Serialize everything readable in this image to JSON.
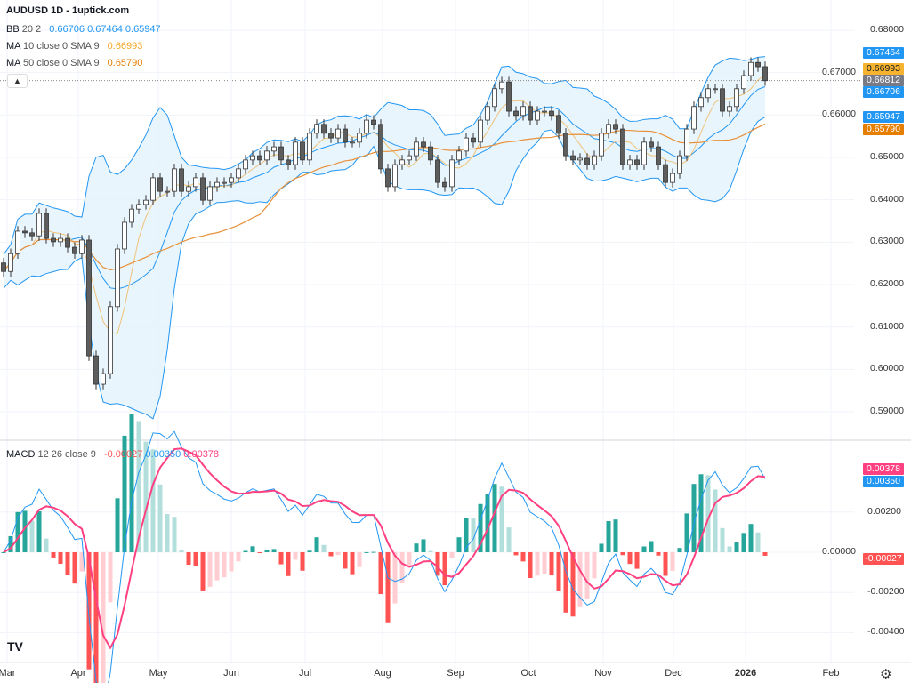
{
  "header": {
    "title": "AUDUSD 1D - 1uptick.com"
  },
  "legend": {
    "bb": {
      "label": "BB",
      "params": "20 2",
      "basis": "0.66706",
      "upper": "0.67464",
      "lower": "0.65947"
    },
    "ma10": {
      "label": "MA",
      "params": "10 close 0 SMA 9",
      "value": "0.66993"
    },
    "ma50": {
      "label": "MA",
      "params": "50 close 0 SMA 9",
      "value": "0.65790"
    },
    "macd": {
      "label": "MACD",
      "params": "12 26 close 9",
      "hist": "-0.00027",
      "macd": "0.00350",
      "signal": "0.00378"
    }
  },
  "collapse_icon": "chevron-up-icon",
  "price_tags": {
    "bb_upper": {
      "text": "0.67464",
      "color": "#2196f3"
    },
    "ma10": {
      "text": "0.66993",
      "color": "#f5a623"
    },
    "last": {
      "text": "0.66812",
      "color": "#787b86"
    },
    "bb_basis": {
      "text": "0.66706",
      "color": "#2196f3"
    },
    "bb_lower": {
      "text": "0.65947",
      "color": "#2196f3"
    },
    "ma50": {
      "text": "0.65790",
      "color": "#e67e00"
    },
    "macd_signal": {
      "text": "0.00378",
      "color": "#ff4081"
    },
    "macd_line": {
      "text": "0.00350",
      "color": "#2196f3"
    },
    "macd_hist": {
      "text": "-0.00027",
      "color": "#ff5252"
    }
  },
  "colors": {
    "bb_band": "#2196f3",
    "bb_fill": "#e3f2fd",
    "ma10": "#f0c27a",
    "ma50": "#e8913a",
    "up_body": "#ffffff",
    "down_body": "#5d5d5d",
    "wick": "#333333",
    "macd": "#2196f3",
    "signal": "#ff4081",
    "hist_up_strong": "#26a69a",
    "hist_up_weak": "#b2dfdb",
    "hist_dn_strong": "#ff5252",
    "hist_dn_weak": "#ffcdd2"
  },
  "chart_data": [
    {
      "type": "candlestick",
      "title": "AUDUSD 1D - 1uptick.com",
      "yaxis_ticks": [
        "0.68000",
        "0.67000",
        "0.66000",
        "0.65000",
        "0.64000",
        "0.63000",
        "0.62000",
        "0.61000",
        "0.60000",
        "0.59000"
      ],
      "ylim": [
        0.5875,
        0.6815
      ],
      "xaxis_ticks": [
        "Mar",
        "Apr",
        "May",
        "Jun",
        "Jul",
        "Aug",
        "Sep",
        "Oct",
        "Nov",
        "Dec",
        "2026",
        "Feb"
      ],
      "grid": true,
      "last_price": 0.66812,
      "closes": [
        0.6231,
        0.6273,
        0.6326,
        0.6322,
        0.6315,
        0.6368,
        0.6309,
        0.6301,
        0.6309,
        0.6288,
        0.6273,
        0.6305,
        0.6032,
        0.5965,
        0.599,
        0.6148,
        0.6284,
        0.6347,
        0.6378,
        0.6389,
        0.6399,
        0.6452,
        0.642,
        0.642,
        0.6473,
        0.642,
        0.6431,
        0.6452,
        0.6399,
        0.6431,
        0.6441,
        0.6441,
        0.6452,
        0.6473,
        0.6494,
        0.6504,
        0.6494,
        0.6515,
        0.6525,
        0.6494,
        0.6483,
        0.6536,
        0.6494,
        0.6557,
        0.6578,
        0.6557,
        0.6546,
        0.6567,
        0.6536,
        0.6536,
        0.6557,
        0.6588,
        0.6578,
        0.6473,
        0.6431,
        0.6483,
        0.6494,
        0.6504,
        0.6536,
        0.6525,
        0.6494,
        0.6441,
        0.6431,
        0.6494,
        0.6515,
        0.6546,
        0.6536,
        0.6588,
        0.662,
        0.6662,
        0.6678,
        0.6609,
        0.6599,
        0.662,
        0.6588,
        0.6609,
        0.6609,
        0.6599,
        0.6557,
        0.6504,
        0.6494,
        0.6498,
        0.6483,
        0.6504,
        0.6557,
        0.6578,
        0.6567,
        0.6483,
        0.6494,
        0.6483,
        0.6536,
        0.6525,
        0.6483,
        0.6441,
        0.6462,
        0.6504,
        0.6567,
        0.662,
        0.6641,
        0.6662,
        0.6662,
        0.6609,
        0.662,
        0.6662,
        0.6693,
        0.6724,
        0.6714,
        0.6681
      ]
    },
    {
      "type": "macd",
      "yaxis_ticks": [
        "0.00200",
        "0.00000",
        "-0.00200",
        "-0.00400"
      ],
      "ylim": [
        -0.0047,
        0.0045
      ]
    }
  ]
}
